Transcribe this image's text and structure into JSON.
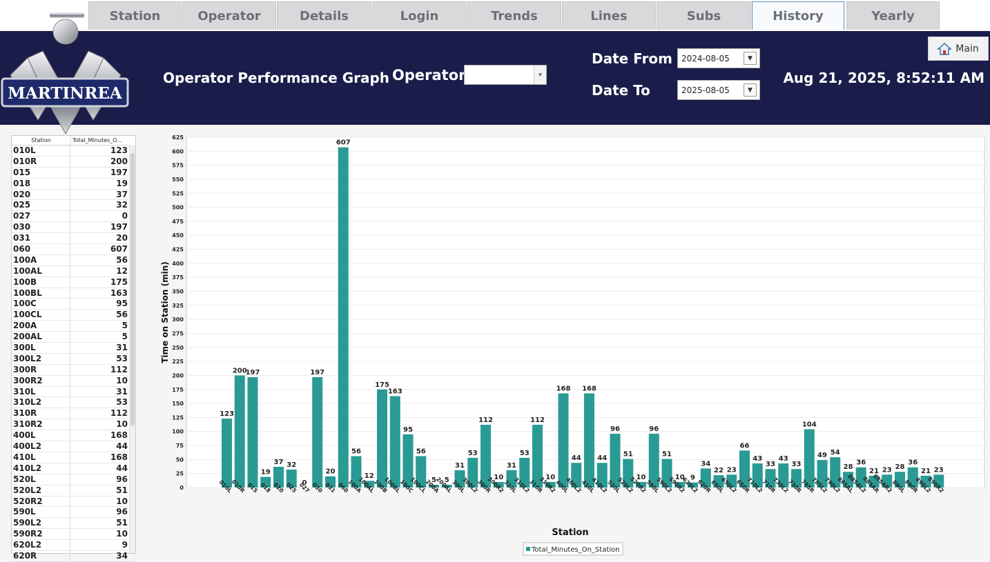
{
  "tabs": [
    {
      "label": "Station"
    },
    {
      "label": "Operator"
    },
    {
      "label": "Details"
    },
    {
      "label": "Login"
    },
    {
      "label": "Trends"
    },
    {
      "label": "Lines"
    },
    {
      "label": "Subs"
    },
    {
      "label": "History",
      "active": true
    },
    {
      "label": "Yearly"
    }
  ],
  "header": {
    "logo_text": "MARTINREA",
    "title": "Operator Performance Graph",
    "operator_label": "Operator",
    "operator_value": "",
    "date_from_label": "Date From",
    "date_from_value": "2024-08-05",
    "date_to_label": "Date To",
    "date_to_value": "2025-08-05",
    "clock": "Aug 21, 2025, 8:52:11 AM",
    "main_button_label": "Main",
    "main_button_icon": "home-icon"
  },
  "table": {
    "columns": [
      "Station",
      "Total_Minutes_O..."
    ],
    "rows": [
      [
        "010L",
        "123"
      ],
      [
        "010R",
        "200"
      ],
      [
        "015",
        "197"
      ],
      [
        "018",
        "19"
      ],
      [
        "020",
        "37"
      ],
      [
        "025",
        "32"
      ],
      [
        "027",
        "0"
      ],
      [
        "030",
        "197"
      ],
      [
        "031",
        "20"
      ],
      [
        "060",
        "607"
      ],
      [
        "100A",
        "56"
      ],
      [
        "100AL",
        "12"
      ],
      [
        "100B",
        "175"
      ],
      [
        "100BL",
        "163"
      ],
      [
        "100C",
        "95"
      ],
      [
        "100CL",
        "56"
      ],
      [
        "200A",
        "5"
      ],
      [
        "200AL",
        "5"
      ],
      [
        "300L",
        "31"
      ],
      [
        "300L2",
        "53"
      ],
      [
        "300R",
        "112"
      ],
      [
        "300R2",
        "10"
      ],
      [
        "310L",
        "31"
      ],
      [
        "310L2",
        "53"
      ],
      [
        "310R",
        "112"
      ],
      [
        "310R2",
        "10"
      ],
      [
        "400L",
        "168"
      ],
      [
        "400L2",
        "44"
      ],
      [
        "410L",
        "168"
      ],
      [
        "410L2",
        "44"
      ],
      [
        "520L",
        "96"
      ],
      [
        "520L2",
        "51"
      ],
      [
        "520R2",
        "10"
      ],
      [
        "590L",
        "96"
      ],
      [
        "590L2",
        "51"
      ],
      [
        "590R2",
        "10"
      ],
      [
        "620L2",
        "9"
      ],
      [
        "620R",
        "34"
      ]
    ]
  },
  "chart_data": {
    "type": "bar",
    "xlabel": "Station",
    "ylabel": "Time on Station (min)",
    "ylim": [
      0,
      625
    ],
    "ytick_step": 25,
    "grid": true,
    "legend_position": "bottom-center",
    "bar_color": "#2a9a94",
    "categories": [
      "010L",
      "010R",
      "015",
      "018",
      "020",
      "025",
      "027",
      "030",
      "031",
      "060",
      "100A",
      "100AL",
      "100B",
      "100BL",
      "100C",
      "100CL",
      "200A",
      "200AL",
      "300L",
      "300L2",
      "300R",
      "300R2",
      "310L",
      "310L2",
      "310R",
      "310R2",
      "400L",
      "400L2",
      "410L",
      "410L2",
      "520L",
      "520L2",
      "520R2",
      "590L",
      "590L2",
      "590R2",
      "620L2",
      "620R",
      "650L",
      "650L2",
      "650R",
      "710L2",
      "710R",
      "730L2",
      "730R",
      "785R",
      "785L2",
      "790L2",
      "885AL",
      "885AL2",
      "885AR",
      "885AR2",
      "890L",
      "890R",
      "890L2",
      "890R2"
    ],
    "series": [
      {
        "name": "Total_Minutes_On_Station",
        "values": [
          123,
          200,
          197,
          19,
          37,
          32,
          0,
          197,
          20,
          607,
          56,
          12,
          175,
          163,
          95,
          56,
          5,
          5,
          31,
          53,
          112,
          10,
          31,
          53,
          112,
          10,
          168,
          44,
          168,
          44,
          96,
          51,
          10,
          96,
          51,
          10,
          9,
          34,
          22,
          23,
          66,
          43,
          33,
          43,
          33,
          104,
          49,
          54,
          28,
          36,
          21,
          23,
          28,
          36,
          21,
          23
        ]
      }
    ]
  }
}
